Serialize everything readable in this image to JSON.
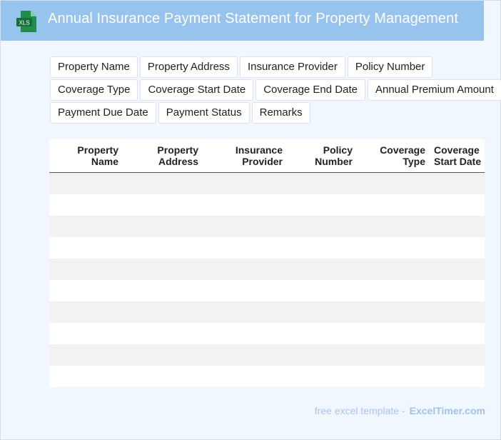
{
  "header": {
    "icon_label": "XLS",
    "title": "Annual Insurance Payment Statement for Property Management",
    "colors": {
      "bar": "#97c3ef",
      "icon_green": "#1f8e48"
    }
  },
  "fields": [
    "Property Name",
    "Property Address",
    "Insurance Provider",
    "Policy Number",
    "Coverage Type",
    "Coverage Start Date",
    "Coverage End Date",
    "Annual Premium Amount",
    "Payment Due Date",
    "Payment Status",
    "Remarks"
  ],
  "table": {
    "columns": [
      [
        "Property",
        "Name"
      ],
      [
        "Property",
        "Address"
      ],
      [
        "Insurance",
        "Provider"
      ],
      [
        "Policy",
        "Number"
      ],
      [
        "Coverage",
        "Type"
      ],
      [
        "Coverage",
        "Start Date"
      ]
    ],
    "row_count": 10
  },
  "footer": {
    "text": "free excel template -",
    "brand": "ExcelTimer.com"
  }
}
